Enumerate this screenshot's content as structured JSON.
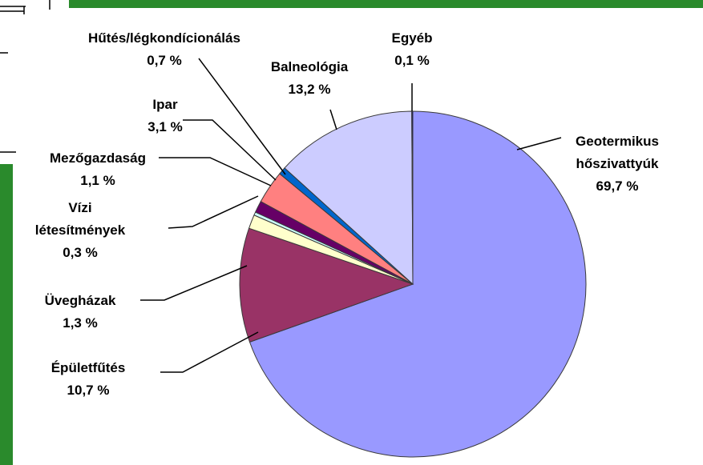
{
  "colors": {
    "background_green": "#2a8a2c",
    "slice_outline": "#3a3a3a",
    "leader_line": "#000000"
  },
  "chart_data": {
    "type": "pie",
    "title": "",
    "slices": [
      {
        "label": "Geotermikus hőszivattyúk",
        "label_lines": [
          "Geotermikus",
          "hőszivattyúk"
        ],
        "value_text": "69,7 %",
        "value": 69.7,
        "color": "#9999ff"
      },
      {
        "label": "Épületfűtés",
        "label_lines": [
          "Épületfűtés"
        ],
        "value_text": "10,7 %",
        "value": 10.7,
        "color": "#993366"
      },
      {
        "label": "Üvegházak",
        "label_lines": [
          "Üvegházak"
        ],
        "value_text": "1,3 %",
        "value": 1.3,
        "color": "#ffffcc"
      },
      {
        "label": "Vízi létesítmények",
        "label_lines": [
          "Vízi",
          "létesítmények"
        ],
        "value_text": "0,3 %",
        "value": 0.3,
        "color": "#ccffff"
      },
      {
        "label": "Mezőgazdaság",
        "label_lines": [
          "Mezőgazdaság"
        ],
        "value_text": "1,1 %",
        "value": 1.1,
        "color": "#660066"
      },
      {
        "label": "Ipar",
        "label_lines": [
          "Ipar"
        ],
        "value_text": "3,1 %",
        "value": 3.1,
        "color": "#ff8080"
      },
      {
        "label": "Hűtés/légkondícionálás",
        "label_lines": [
          "Hűtés/légkondícionálás"
        ],
        "value_text": "0,7 %",
        "value": 0.7,
        "color": "#0066cc"
      },
      {
        "label": "Balneológia",
        "label_lines": [
          "Balneológia"
        ],
        "value_text": "13,2 %",
        "value": 13.2,
        "color": "#ccccff"
      },
      {
        "label": "Egyéb",
        "label_lines": [
          "Egyéb"
        ],
        "value_text": "0,1 %",
        "value": 0.1,
        "color": "#000080"
      }
    ],
    "legend": "none"
  }
}
